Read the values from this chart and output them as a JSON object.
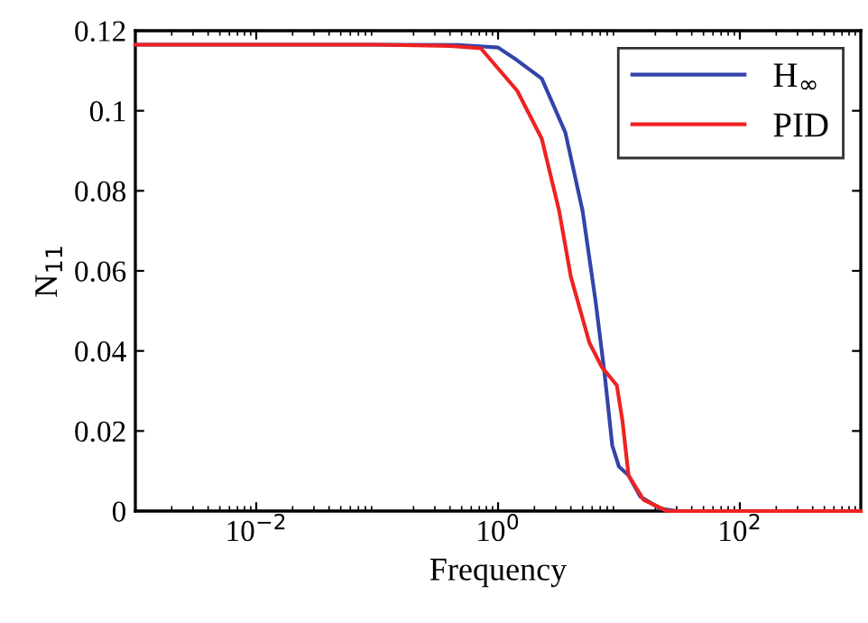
{
  "chart_data": {
    "type": "line",
    "xlabel": "Frequency",
    "ylabel": "N$_{11}$",
    "log": "x",
    "grid": false,
    "legend": "top right",
    "marker": "none",
    "line_style": "solid",
    "xlim": [
      0.001,
      1000
    ],
    "xticks": [
      {
        "value": 0.01,
        "label": "10$^{−2}$"
      },
      {
        "value": 1,
        "label": "10$^{0}$"
      },
      {
        "value": 100,
        "label": "10$^{2}$"
      }
    ],
    "ylim": [
      0,
      0.12
    ],
    "yticks": [
      0,
      0.02,
      0.04,
      0.06,
      0.08,
      {
        "value": 0.1,
        "label": "0.1"
      },
      0.12
    ],
    "series": [
      {
        "name": "H$_{∞}$",
        "color": "#3344aa",
        "x": [
          0.001,
          0.01,
          0.1,
          0.5,
          1.0,
          1.44,
          2.3,
          3.6,
          5.0,
          6.4,
          7.6,
          8.8,
          10,
          12,
          15,
          22,
          30,
          100,
          1000
        ],
        "values": [
          0.1165,
          0.1165,
          0.1165,
          0.1164,
          0.1158,
          0.1126,
          0.108,
          0.0946,
          0.075,
          0.0525,
          0.0344,
          0.0164,
          0.0111,
          0.0089,
          0.0036,
          0.0006,
          0,
          0,
          0
        ]
      },
      {
        "name": "PID",
        "color": "#ee2222",
        "x": [
          0.001,
          0.01,
          0.1,
          0.4,
          0.72,
          1.44,
          2.3,
          3.2,
          4.0,
          5.7,
          7.2,
          9.6,
          10.7,
          12,
          16,
          25,
          100,
          1000
        ],
        "values": [
          0.1165,
          0.1165,
          0.1165,
          0.1162,
          0.1156,
          0.105,
          0.093,
          0.075,
          0.0585,
          0.042,
          0.036,
          0.0314,
          0.0224,
          0.0089,
          0.0028,
          0,
          0,
          0
        ]
      }
    ]
  }
}
